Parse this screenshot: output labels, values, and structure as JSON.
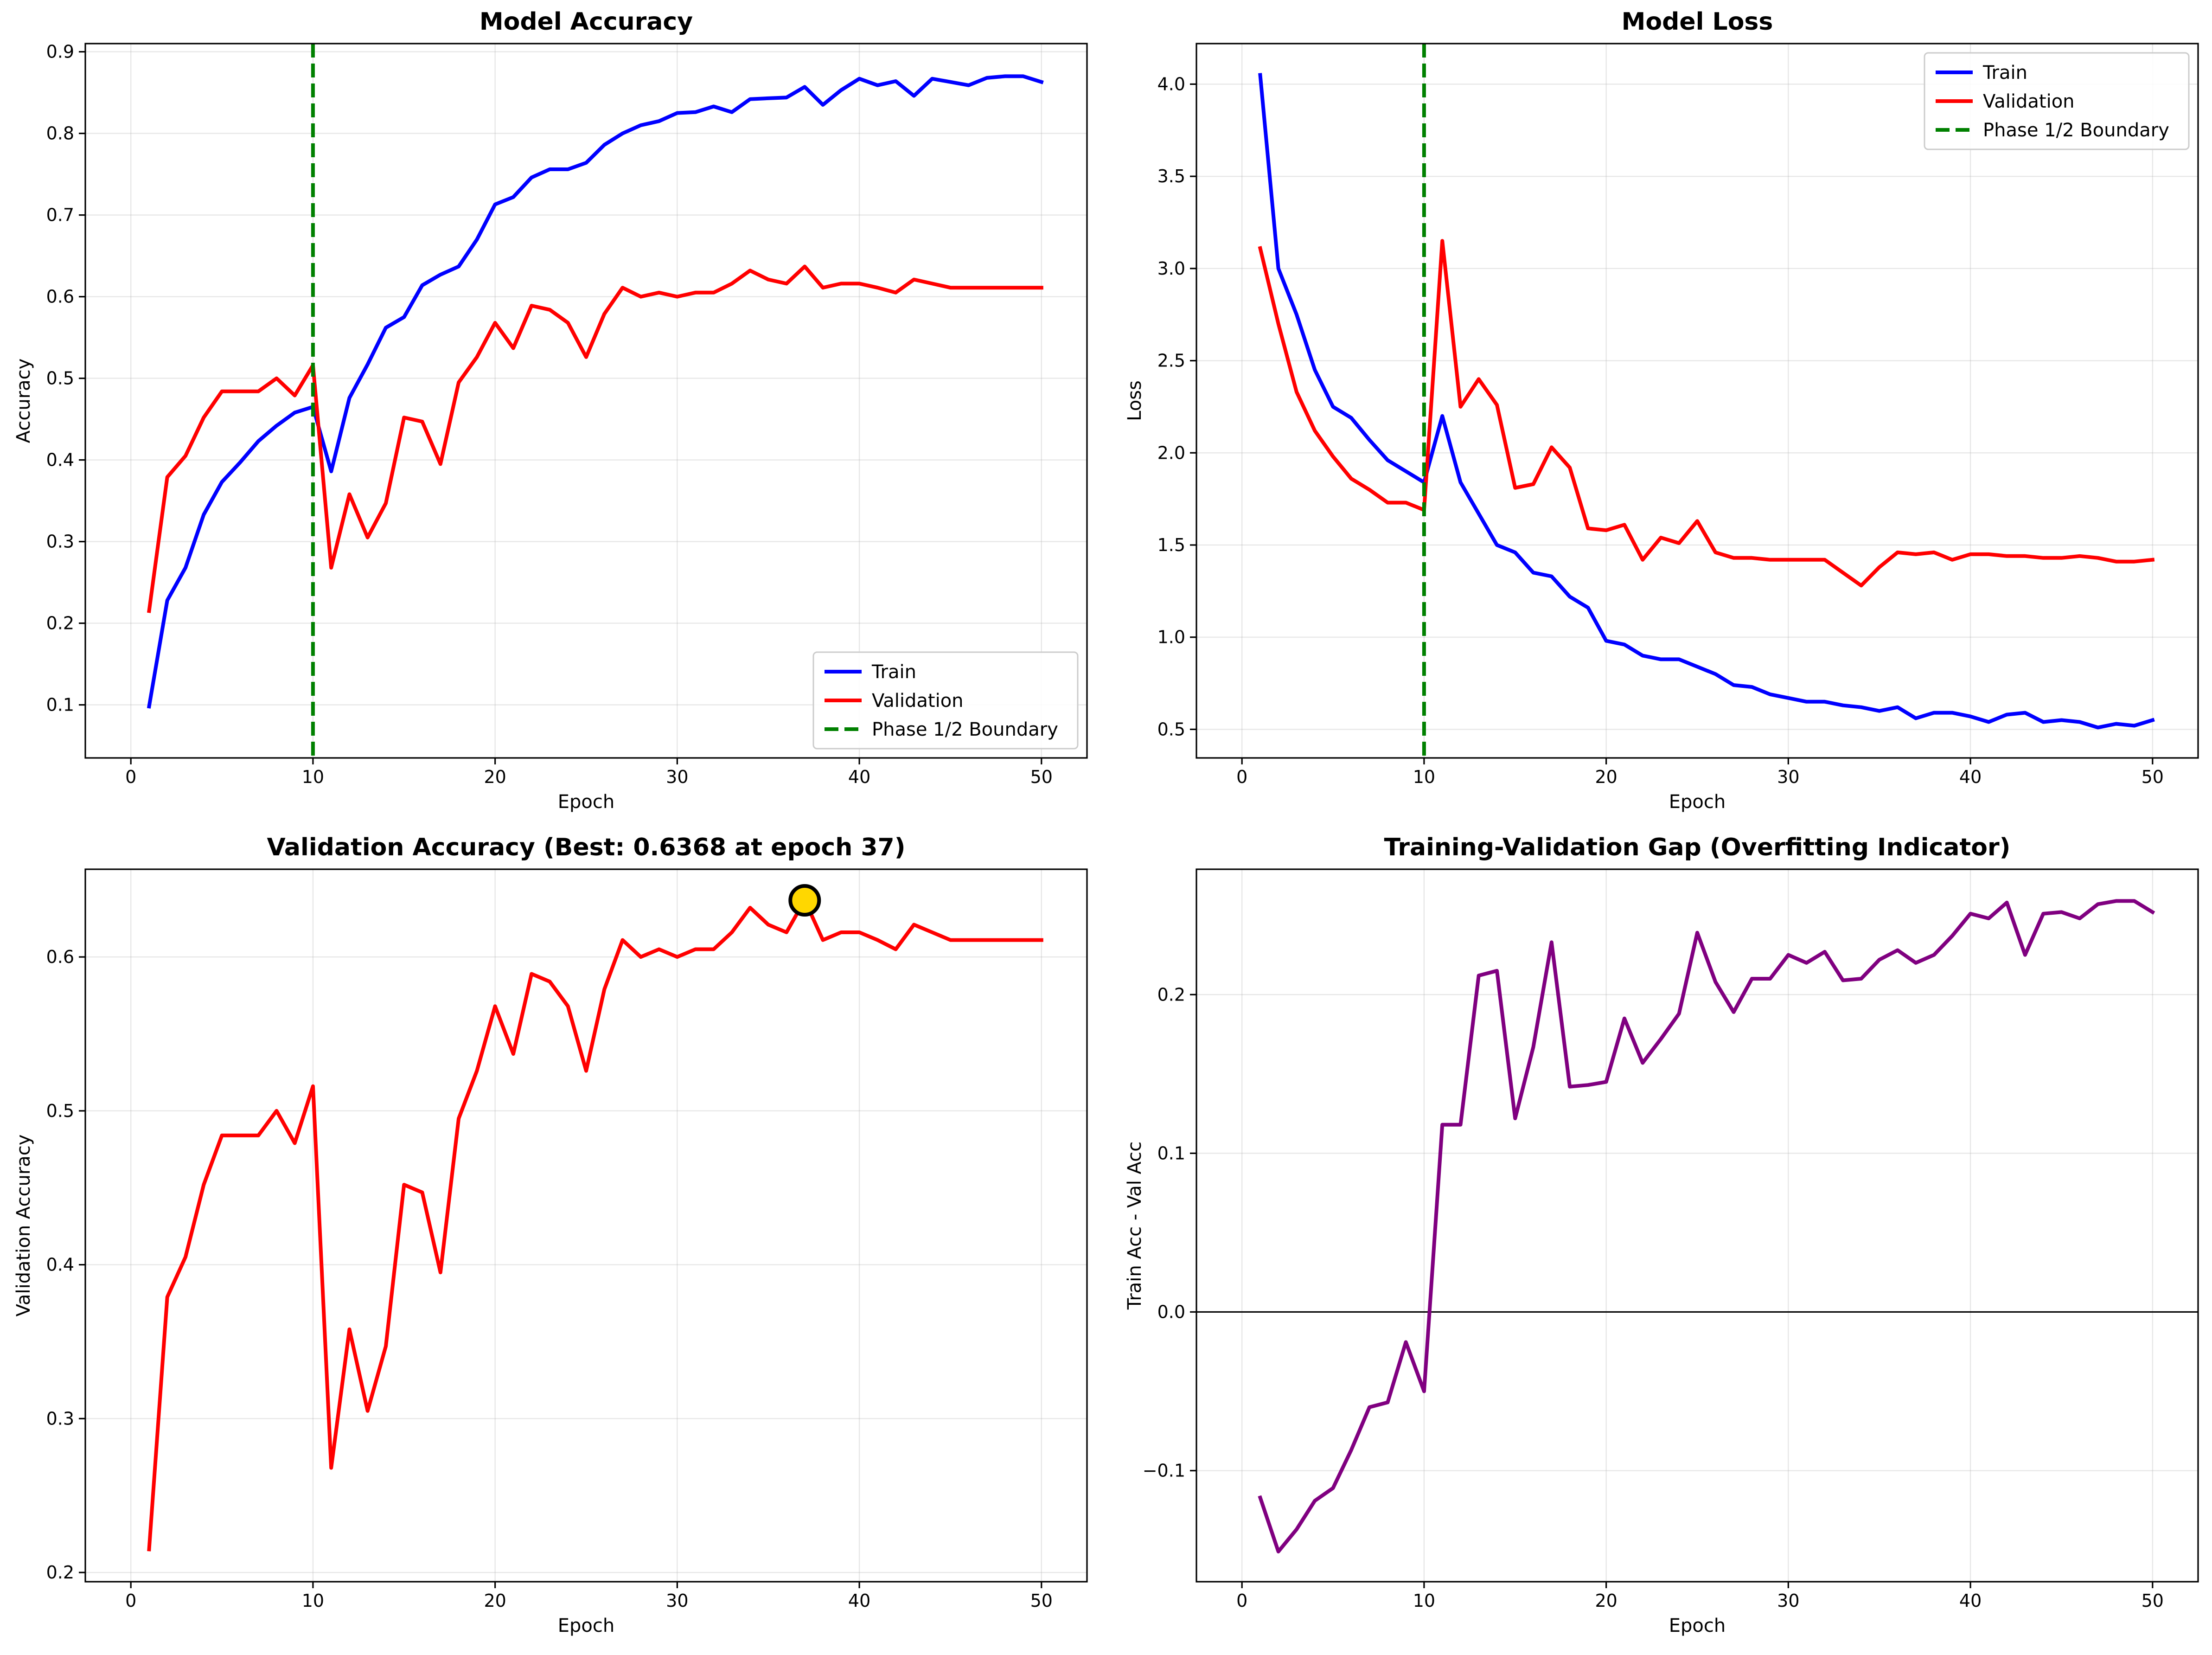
{
  "chart_data": [
    {
      "type": "line",
      "title": "Model Accuracy",
      "xlabel": "Epoch",
      "ylabel": "Accuracy",
      "xlim": [
        -2.5,
        52.5
      ],
      "ylim": [
        0.035,
        0.91
      ],
      "xticks": [
        0,
        10,
        20,
        30,
        40,
        50
      ],
      "xtick_labels": [
        "0",
        "10",
        "20",
        "30",
        "40",
        "50"
      ],
      "yticks": [
        0.1,
        0.2,
        0.3,
        0.4,
        0.5,
        0.6,
        0.7,
        0.8,
        0.9
      ],
      "ytick_labels": [
        "0.1",
        "0.2",
        "0.3",
        "0.4",
        "0.5",
        "0.6",
        "0.7",
        "0.8",
        "0.9"
      ],
      "grid": true,
      "legend": "lower-right",
      "vline": {
        "x": 10,
        "label": "Phase 1/2 Boundary",
        "color": "#008000"
      },
      "series": [
        {
          "name": "Train",
          "color": "#0000ff",
          "x": [
            1,
            2,
            3,
            4,
            5,
            6,
            7,
            8,
            9,
            10,
            11,
            12,
            13,
            14,
            15,
            16,
            17,
            18,
            19,
            20,
            21,
            22,
            23,
            24,
            25,
            26,
            27,
            28,
            29,
            30,
            31,
            32,
            33,
            34,
            35,
            36,
            37,
            38,
            39,
            40,
            41,
            42,
            43,
            44,
            45,
            46,
            47,
            48,
            49,
            50
          ],
          "y": [
            0.098,
            0.228,
            0.268,
            0.333,
            0.373,
            0.397,
            0.423,
            0.442,
            0.458,
            0.465,
            0.386,
            0.476,
            0.517,
            0.562,
            0.575,
            0.614,
            0.627,
            0.637,
            0.67,
            0.713,
            0.722,
            0.746,
            0.756,
            0.756,
            0.764,
            0.786,
            0.8,
            0.81,
            0.815,
            0.825,
            0.826,
            0.833,
            0.826,
            0.842,
            0.843,
            0.844,
            0.857,
            0.835,
            0.853,
            0.867,
            0.859,
            0.864,
            0.846,
            0.867,
            0.863,
            0.859,
            0.868,
            0.87,
            0.87,
            0.863
          ]
        },
        {
          "name": "Validation",
          "color": "#ff0000",
          "x": [
            1,
            2,
            3,
            4,
            5,
            6,
            7,
            8,
            9,
            10,
            11,
            12,
            13,
            14,
            15,
            16,
            17,
            18,
            19,
            20,
            21,
            22,
            23,
            24,
            25,
            26,
            27,
            28,
            29,
            30,
            31,
            32,
            33,
            34,
            35,
            36,
            37,
            38,
            39,
            40,
            41,
            42,
            43,
            44,
            45,
            46,
            47,
            48,
            49,
            50
          ],
          "y": [
            0.215,
            0.379,
            0.405,
            0.452,
            0.484,
            0.484,
            0.484,
            0.5,
            0.479,
            0.516,
            0.268,
            0.358,
            0.305,
            0.347,
            0.452,
            0.447,
            0.395,
            0.495,
            0.526,
            0.568,
            0.537,
            0.589,
            0.584,
            0.568,
            0.526,
            0.579,
            0.611,
            0.6,
            0.605,
            0.6,
            0.605,
            0.605,
            0.616,
            0.632,
            0.621,
            0.616,
            0.637,
            0.611,
            0.616,
            0.616,
            0.611,
            0.605,
            0.621,
            0.616,
            0.611,
            0.611,
            0.611,
            0.611,
            0.611,
            0.611
          ]
        }
      ]
    },
    {
      "type": "line",
      "title": "Model Loss",
      "xlabel": "Epoch",
      "ylabel": "Loss",
      "xlim": [
        -2.5,
        52.5
      ],
      "ylim": [
        0.345,
        4.22
      ],
      "xticks": [
        0,
        10,
        20,
        30,
        40,
        50
      ],
      "xtick_labels": [
        "0",
        "10",
        "20",
        "30",
        "40",
        "50"
      ],
      "yticks": [
        0.5,
        1.0,
        1.5,
        2.0,
        2.5,
        3.0,
        3.5,
        4.0
      ],
      "ytick_labels": [
        "0.5",
        "1.0",
        "1.5",
        "2.0",
        "2.5",
        "3.0",
        "3.5",
        "4.0"
      ],
      "grid": true,
      "legend": "upper-right",
      "vline": {
        "x": 10,
        "label": "Phase 1/2 Boundary",
        "color": "#008000"
      },
      "series": [
        {
          "name": "Train",
          "color": "#0000ff",
          "x": [
            1,
            2,
            3,
            4,
            5,
            6,
            7,
            8,
            9,
            10,
            11,
            12,
            13,
            14,
            15,
            16,
            17,
            18,
            19,
            20,
            21,
            22,
            23,
            24,
            25,
            26,
            27,
            28,
            29,
            30,
            31,
            32,
            33,
            34,
            35,
            36,
            37,
            38,
            39,
            40,
            41,
            42,
            43,
            44,
            45,
            46,
            47,
            48,
            49,
            50
          ],
          "y": [
            4.05,
            3.0,
            2.75,
            2.45,
            2.25,
            2.19,
            2.07,
            1.96,
            1.9,
            1.84,
            2.2,
            1.84,
            1.67,
            1.5,
            1.46,
            1.35,
            1.33,
            1.22,
            1.16,
            0.98,
            0.96,
            0.9,
            0.88,
            0.88,
            0.84,
            0.8,
            0.74,
            0.73,
            0.69,
            0.67,
            0.65,
            0.65,
            0.63,
            0.62,
            0.6,
            0.62,
            0.56,
            0.59,
            0.59,
            0.57,
            0.54,
            0.58,
            0.59,
            0.54,
            0.55,
            0.54,
            0.51,
            0.53,
            0.52,
            0.55
          ]
        },
        {
          "name": "Validation",
          "color": "#ff0000",
          "x": [
            1,
            2,
            3,
            4,
            5,
            6,
            7,
            8,
            9,
            10,
            11,
            12,
            13,
            14,
            15,
            16,
            17,
            18,
            19,
            20,
            21,
            22,
            23,
            24,
            25,
            26,
            27,
            28,
            29,
            30,
            31,
            32,
            33,
            34,
            35,
            36,
            37,
            38,
            39,
            40,
            41,
            42,
            43,
            44,
            45,
            46,
            47,
            48,
            49,
            50
          ],
          "y": [
            3.11,
            2.7,
            2.33,
            2.12,
            1.98,
            1.86,
            1.8,
            1.73,
            1.73,
            1.69,
            3.15,
            2.25,
            2.4,
            2.26,
            1.81,
            1.83,
            2.03,
            1.92,
            1.59,
            1.58,
            1.61,
            1.42,
            1.54,
            1.51,
            1.63,
            1.46,
            1.43,
            1.43,
            1.42,
            1.42,
            1.42,
            1.42,
            1.35,
            1.28,
            1.38,
            1.46,
            1.45,
            1.46,
            1.42,
            1.45,
            1.45,
            1.44,
            1.44,
            1.43,
            1.43,
            1.44,
            1.43,
            1.41,
            1.41,
            1.42
          ]
        }
      ]
    },
    {
      "type": "line",
      "title": "Validation Accuracy (Best: 0.6368 at epoch 37)",
      "xlabel": "Epoch",
      "ylabel": "Validation Accuracy",
      "xlim": [
        -2.5,
        52.5
      ],
      "ylim": [
        0.194,
        0.657
      ],
      "xticks": [
        0,
        10,
        20,
        30,
        40,
        50
      ],
      "xtick_labels": [
        "0",
        "10",
        "20",
        "30",
        "40",
        "50"
      ],
      "yticks": [
        0.2,
        0.3,
        0.4,
        0.5,
        0.6
      ],
      "ytick_labels": [
        "0.2",
        "0.3",
        "0.4",
        "0.5",
        "0.6"
      ],
      "grid": true,
      "best_marker": {
        "x": 37,
        "y": 0.6368,
        "color": "#ffd700"
      },
      "series": [
        {
          "name": "Validation",
          "color": "#ff0000",
          "x": [
            1,
            2,
            3,
            4,
            5,
            6,
            7,
            8,
            9,
            10,
            11,
            12,
            13,
            14,
            15,
            16,
            17,
            18,
            19,
            20,
            21,
            22,
            23,
            24,
            25,
            26,
            27,
            28,
            29,
            30,
            31,
            32,
            33,
            34,
            35,
            36,
            37,
            38,
            39,
            40,
            41,
            42,
            43,
            44,
            45,
            46,
            47,
            48,
            49,
            50
          ],
          "y": [
            0.215,
            0.379,
            0.405,
            0.452,
            0.484,
            0.484,
            0.484,
            0.5,
            0.479,
            0.516,
            0.268,
            0.358,
            0.305,
            0.347,
            0.452,
            0.447,
            0.395,
            0.495,
            0.526,
            0.568,
            0.537,
            0.589,
            0.584,
            0.568,
            0.526,
            0.579,
            0.611,
            0.6,
            0.605,
            0.6,
            0.605,
            0.605,
            0.616,
            0.632,
            0.621,
            0.616,
            0.637,
            0.611,
            0.616,
            0.616,
            0.611,
            0.605,
            0.621,
            0.616,
            0.611,
            0.611,
            0.611,
            0.611,
            0.611,
            0.611
          ]
        }
      ]
    },
    {
      "type": "line",
      "title": "Training-Validation Gap (Overfitting Indicator)",
      "xlabel": "Epoch",
      "ylabel": "Train Acc - Val Acc",
      "xlim": [
        -2.5,
        52.5
      ],
      "ylim": [
        -0.17,
        0.279
      ],
      "xticks": [
        0,
        10,
        20,
        30,
        40,
        50
      ],
      "xtick_labels": [
        "0",
        "10",
        "20",
        "30",
        "40",
        "50"
      ],
      "yticks": [
        -0.1,
        0.0,
        0.1,
        0.2
      ],
      "ytick_labels": [
        "−0.1",
        "0.0",
        "0.1",
        "0.2"
      ],
      "grid": true,
      "hline": {
        "y": 0,
        "color": "#000000"
      },
      "series": [
        {
          "name": "Gap",
          "color": "#800080",
          "x": [
            1,
            2,
            3,
            4,
            5,
            6,
            7,
            8,
            9,
            10,
            11,
            12,
            13,
            14,
            15,
            16,
            17,
            18,
            19,
            20,
            21,
            22,
            23,
            24,
            25,
            26,
            27,
            28,
            29,
            30,
            31,
            32,
            33,
            34,
            35,
            36,
            37,
            38,
            39,
            40,
            41,
            42,
            43,
            44,
            45,
            46,
            47,
            48,
            49,
            50
          ],
          "y": [
            -0.117,
            -0.151,
            -0.137,
            -0.119,
            -0.111,
            -0.087,
            -0.06,
            -0.057,
            -0.019,
            -0.05,
            0.118,
            0.118,
            0.212,
            0.215,
            0.122,
            0.167,
            0.233,
            0.142,
            0.143,
            0.145,
            0.185,
            0.157,
            0.172,
            0.188,
            0.239,
            0.208,
            0.189,
            0.21,
            0.21,
            0.225,
            0.22,
            0.227,
            0.209,
            0.21,
            0.222,
            0.228,
            0.22,
            0.225,
            0.237,
            0.251,
            0.248,
            0.258,
            0.225,
            0.251,
            0.252,
            0.248,
            0.257,
            0.259,
            0.259,
            0.252
          ]
        }
      ]
    }
  ]
}
